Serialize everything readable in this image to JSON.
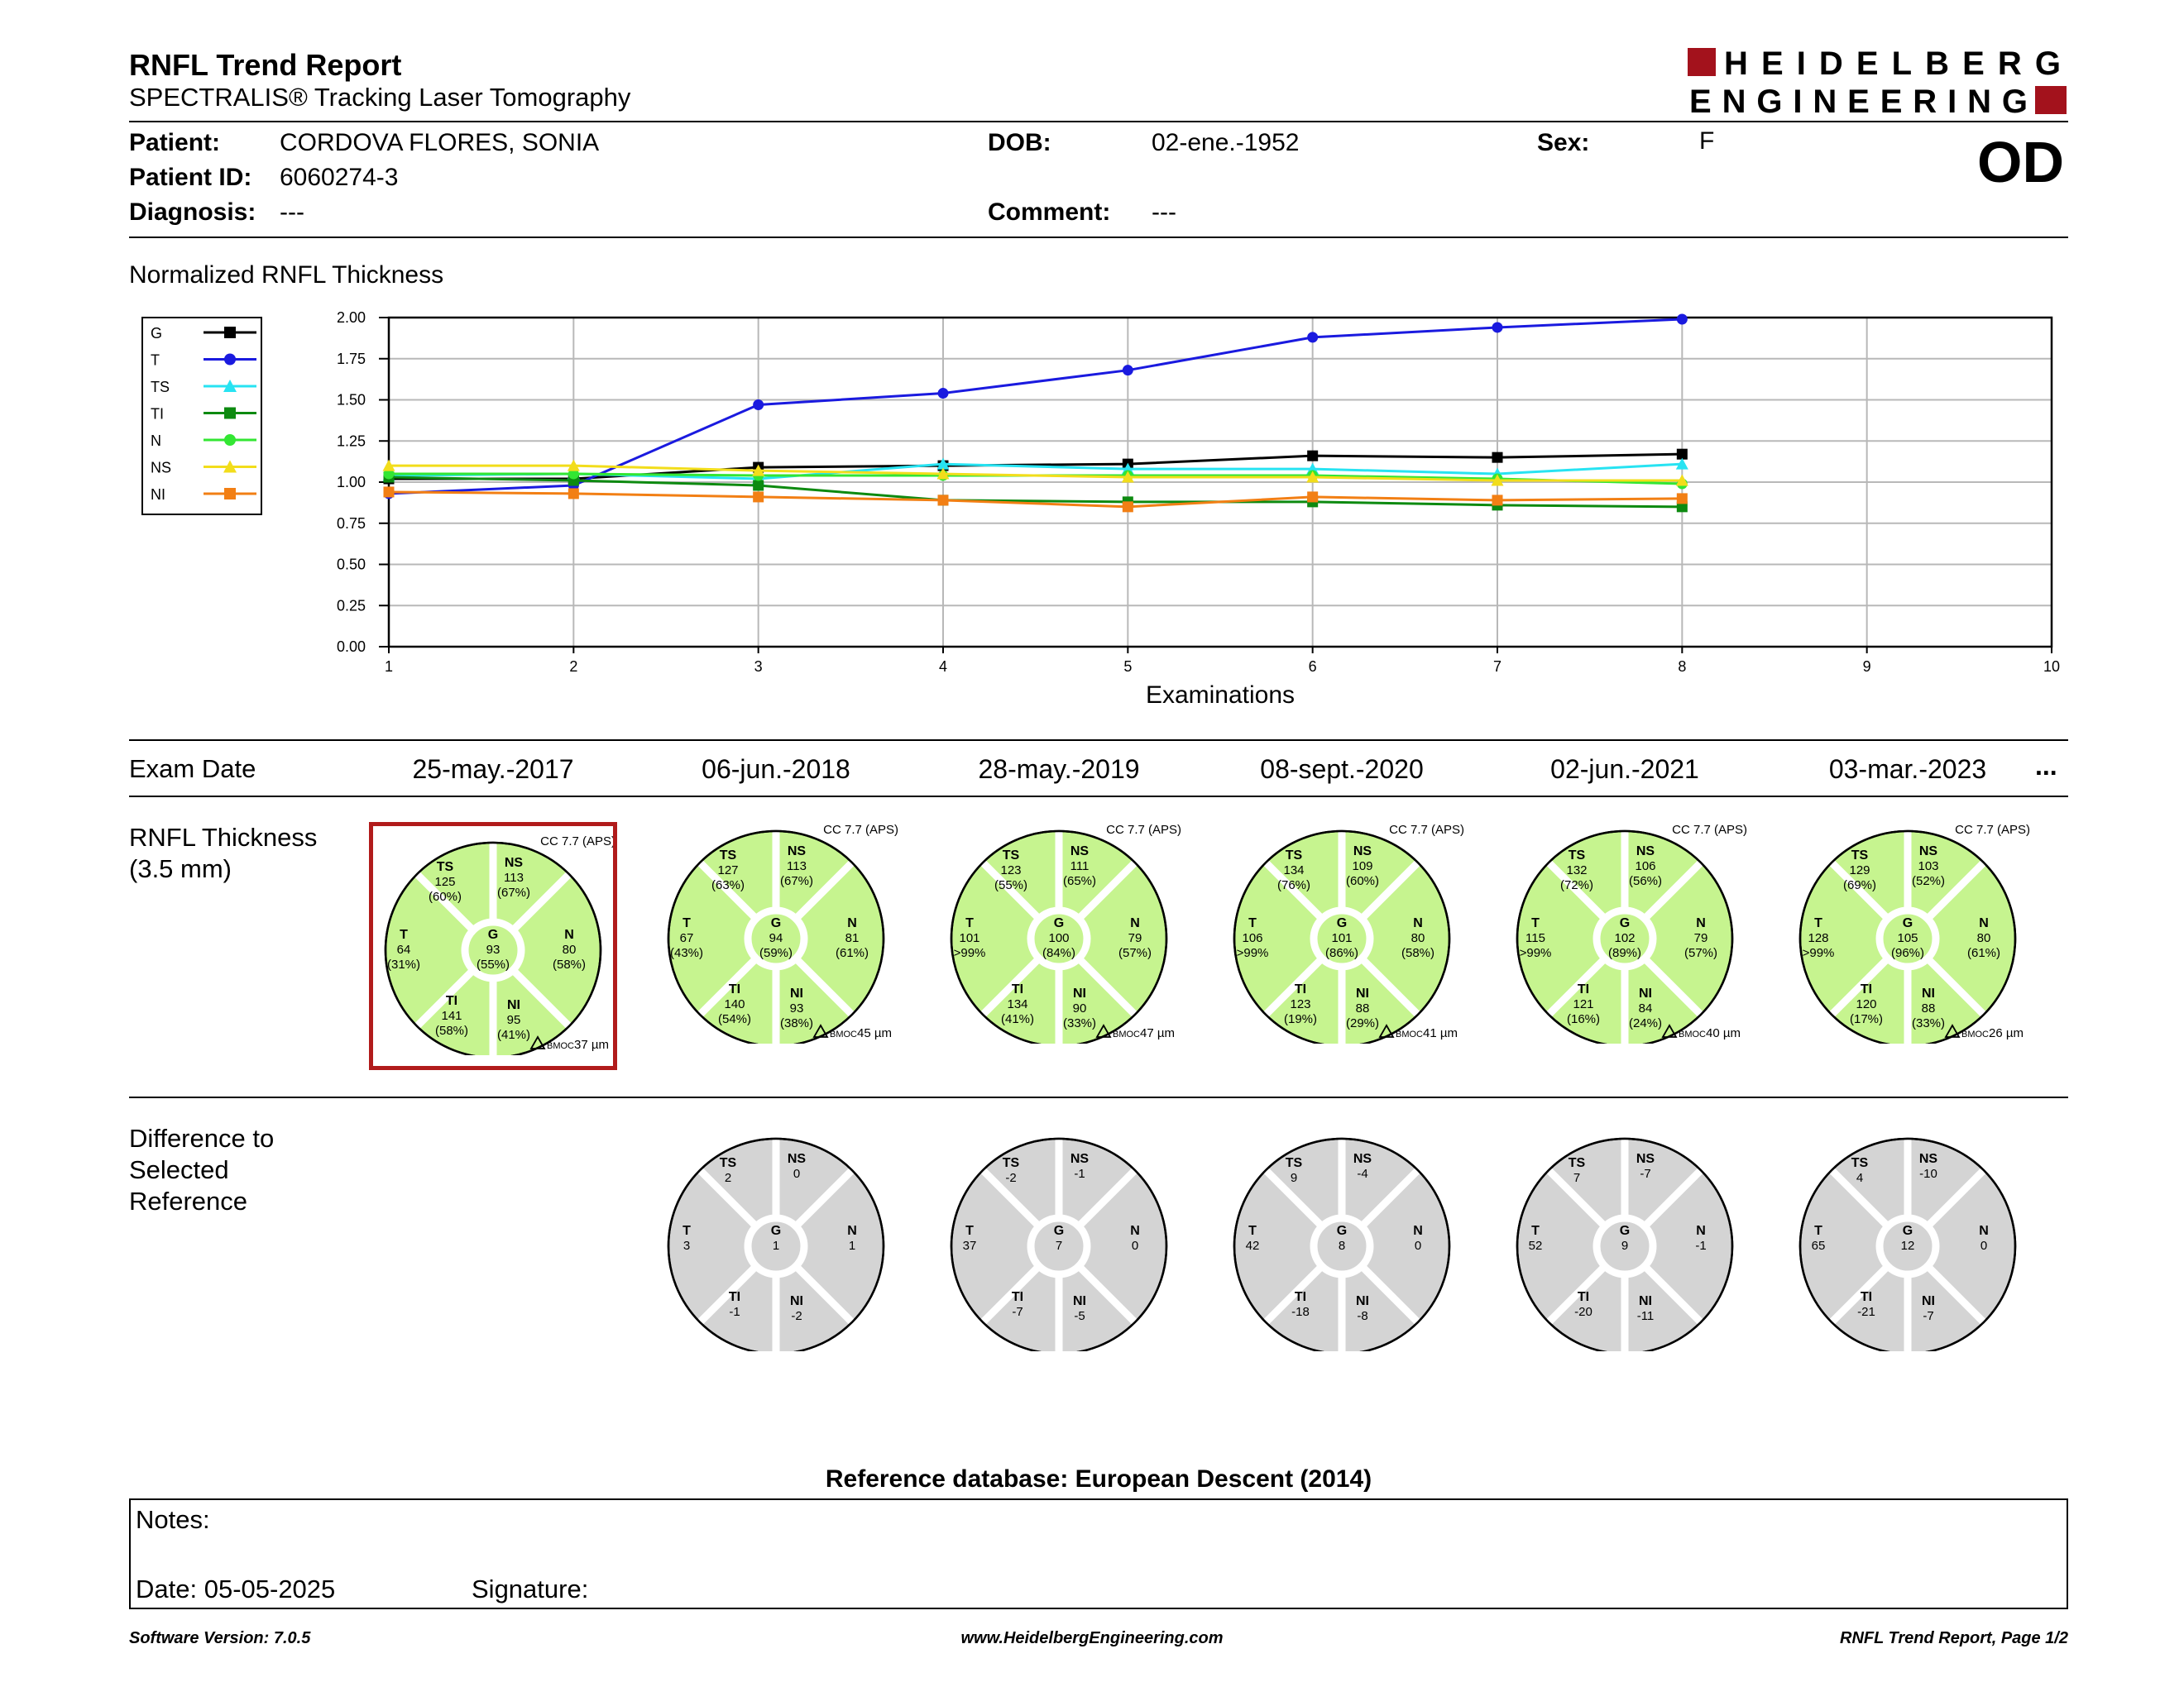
{
  "header": {
    "title": "RNFL Trend Report",
    "subtitle": "SPECTRALIS® Tracking Laser Tomography",
    "logo_line1": "HEIDELBERG",
    "logo_line2": "ENGINEERING",
    "eye": "OD",
    "brand_color": "#a3121c"
  },
  "patient": {
    "patient_label": "Patient:",
    "patient_value": "CORDOVA FLORES, SONIA",
    "dob_label": "DOB:",
    "dob_value": "02-ene.-1952",
    "sex_label": "Sex:",
    "sex_value": "F",
    "id_label": "Patient ID:",
    "id_value": "6060274-3",
    "diagnosis_label": "Diagnosis:",
    "diagnosis_value": "---",
    "comment_label": "Comment:",
    "comment_value": "---"
  },
  "chart_title": "Normalized RNFL Thickness",
  "chart_data": {
    "type": "line",
    "title": "Normalized RNFL Thickness",
    "xlabel": "Examinations",
    "ylabel": "",
    "xlim": [
      1,
      10
    ],
    "ylim": [
      0,
      2
    ],
    "x_ticks": [
      "1",
      "2",
      "3",
      "4",
      "5",
      "6",
      "7",
      "8",
      "9",
      "10"
    ],
    "y_ticks": [
      "0.00",
      "0.25",
      "0.50",
      "0.75",
      "1.00",
      "1.25",
      "1.50",
      "1.75",
      "2.00"
    ],
    "grid": true,
    "legend_position": "left",
    "x": [
      1,
      2,
      3,
      4,
      5,
      6,
      7,
      8
    ],
    "series": [
      {
        "name": "G",
        "color": "#000000",
        "marker": "square",
        "values": [
          1.02,
          1.02,
          1.09,
          1.1,
          1.11,
          1.16,
          1.15,
          1.17
        ]
      },
      {
        "name": "T",
        "color": "#1a1adf",
        "marker": "circle",
        "values": [
          0.93,
          0.98,
          1.47,
          1.54,
          1.68,
          1.88,
          1.94,
          1.99
        ]
      },
      {
        "name": "TS",
        "color": "#27e3f2",
        "marker": "triangle",
        "values": [
          1.04,
          1.05,
          1.02,
          1.11,
          1.08,
          1.08,
          1.05,
          1.11
        ]
      },
      {
        "name": "TI",
        "color": "#0d8a10",
        "marker": "square",
        "values": [
          1.03,
          1.01,
          0.98,
          0.89,
          0.88,
          0.88,
          0.86,
          0.85
        ]
      },
      {
        "name": "N",
        "color": "#33e633",
        "marker": "circle",
        "values": [
          1.05,
          1.05,
          1.04,
          1.04,
          1.04,
          1.04,
          1.02,
          0.99
        ]
      },
      {
        "name": "NS",
        "color": "#f2dd1b",
        "marker": "triangle",
        "values": [
          1.1,
          1.1,
          1.07,
          1.05,
          1.03,
          1.03,
          1.01,
          1.01
        ]
      },
      {
        "name": "NI",
        "color": "#f27f14",
        "marker": "square",
        "values": [
          0.94,
          0.93,
          0.91,
          0.89,
          0.85,
          0.91,
          0.89,
          0.9
        ]
      }
    ]
  },
  "exam_date_label": "Exam Date",
  "exam_dates": [
    "25-may.-2017",
    "06-jun.-2018",
    "28-may.-2019",
    "08-sept.-2020",
    "02-jun.-2021",
    "03-mar.-2023"
  ],
  "more_exams": "...",
  "rnfl_label_line1": "RNFL Thickness",
  "rnfl_label_line2": "(3.5 mm)",
  "diff_label_line1": "Difference to",
  "diff_label_line2": "Selected",
  "diff_label_line3": "Reference",
  "bmo_label": "BMOC",
  "colors": {
    "normal_fill": "#c6f48f",
    "diff_fill": "#d4d4d4",
    "selected_border": "#b11b1b"
  },
  "thickness_exams": [
    {
      "cc": "CC 7.7 (APS)",
      "bmoc": "37 µm",
      "TS": [
        "TS",
        "125",
        "(60%)"
      ],
      "NS": [
        "NS",
        "113",
        "(67%)"
      ],
      "T": [
        "T",
        "64",
        "(31%)"
      ],
      "G": [
        "G",
        "93",
        "(55%)"
      ],
      "N": [
        "N",
        "80",
        "(58%)"
      ],
      "TI": [
        "TI",
        "141",
        "(58%)"
      ],
      "NI": [
        "NI",
        "95",
        "(41%)"
      ]
    },
    {
      "cc": "CC 7.7 (APS)",
      "bmoc": "45 µm",
      "TS": [
        "TS",
        "127",
        "(63%)"
      ],
      "NS": [
        "NS",
        "113",
        "(67%)"
      ],
      "T": [
        "T",
        "67",
        "(43%)"
      ],
      "G": [
        "G",
        "94",
        "(59%)"
      ],
      "N": [
        "N",
        "81",
        "(61%)"
      ],
      "TI": [
        "TI",
        "140",
        "(54%)"
      ],
      "NI": [
        "NI",
        "93",
        "(38%)"
      ]
    },
    {
      "cc": "CC 7.7 (APS)",
      "bmoc": "47 µm",
      "TS": [
        "TS",
        "123",
        "(55%)"
      ],
      "NS": [
        "NS",
        "111",
        "(65%)"
      ],
      "T": [
        "T",
        "101",
        ">99%"
      ],
      "G": [
        "G",
        "100",
        "(84%)"
      ],
      "N": [
        "N",
        "79",
        "(57%)"
      ],
      "TI": [
        "TI",
        "134",
        "(41%)"
      ],
      "NI": [
        "NI",
        "90",
        "(33%)"
      ]
    },
    {
      "cc": "CC 7.7 (APS)",
      "bmoc": "41 µm",
      "TS": [
        "TS",
        "134",
        "(76%)"
      ],
      "NS": [
        "NS",
        "109",
        "(60%)"
      ],
      "T": [
        "T",
        "106",
        ">99%"
      ],
      "G": [
        "G",
        "101",
        "(86%)"
      ],
      "N": [
        "N",
        "80",
        "(58%)"
      ],
      "TI": [
        "TI",
        "123",
        "(19%)"
      ],
      "NI": [
        "NI",
        "88",
        "(29%)"
      ]
    },
    {
      "cc": "CC 7.7 (APS)",
      "bmoc": "40 µm",
      "TS": [
        "TS",
        "132",
        "(72%)"
      ],
      "NS": [
        "NS",
        "106",
        "(56%)"
      ],
      "T": [
        "T",
        "115",
        ">99%"
      ],
      "G": [
        "G",
        "102",
        "(89%)"
      ],
      "N": [
        "N",
        "79",
        "(57%)"
      ],
      "TI": [
        "TI",
        "121",
        "(16%)"
      ],
      "NI": [
        "NI",
        "84",
        "(24%)"
      ]
    },
    {
      "cc": "CC 7.7 (APS)",
      "bmoc": "26 µm",
      "TS": [
        "TS",
        "129",
        "(69%)"
      ],
      "NS": [
        "NS",
        "103",
        "(52%)"
      ],
      "T": [
        "T",
        "128",
        ">99%"
      ],
      "G": [
        "G",
        "105",
        "(96%)"
      ],
      "N": [
        "N",
        "80",
        "(61%)"
      ],
      "TI": [
        "TI",
        "120",
        "(17%)"
      ],
      "NI": [
        "NI",
        "88",
        "(33%)"
      ]
    }
  ],
  "difference_exams": [
    {
      "TS": [
        "TS",
        "2"
      ],
      "NS": [
        "NS",
        "0"
      ],
      "T": [
        "T",
        "3"
      ],
      "G": [
        "G",
        "1"
      ],
      "N": [
        "N",
        "1"
      ],
      "TI": [
        "TI",
        "-1"
      ],
      "NI": [
        "NI",
        "-2"
      ]
    },
    {
      "TS": [
        "TS",
        "-2"
      ],
      "NS": [
        "NS",
        "-1"
      ],
      "T": [
        "T",
        "37"
      ],
      "G": [
        "G",
        "7"
      ],
      "N": [
        "N",
        "0"
      ],
      "TI": [
        "TI",
        "-7"
      ],
      "NI": [
        "NI",
        "-5"
      ]
    },
    {
      "TS": [
        "TS",
        "9"
      ],
      "NS": [
        "NS",
        "-4"
      ],
      "T": [
        "T",
        "42"
      ],
      "G": [
        "G",
        "8"
      ],
      "N": [
        "N",
        "0"
      ],
      "TI": [
        "TI",
        "-18"
      ],
      "NI": [
        "NI",
        "-8"
      ]
    },
    {
      "TS": [
        "TS",
        "7"
      ],
      "NS": [
        "NS",
        "-7"
      ],
      "T": [
        "T",
        "52"
      ],
      "G": [
        "G",
        "9"
      ],
      "N": [
        "N",
        "-1"
      ],
      "TI": [
        "TI",
        "-20"
      ],
      "NI": [
        "NI",
        "-11"
      ]
    },
    {
      "TS": [
        "TS",
        "4"
      ],
      "NS": [
        "NS",
        "-10"
      ],
      "T": [
        "T",
        "65"
      ],
      "G": [
        "G",
        "12"
      ],
      "N": [
        "N",
        "0"
      ],
      "TI": [
        "TI",
        "-21"
      ],
      "NI": [
        "NI",
        "-7"
      ]
    }
  ],
  "reference_db": "Reference database: European Descent (2014)",
  "notes": {
    "notes_label": "Notes:",
    "date_label": "Date: 05-05-2025",
    "signature_label": "Signature:"
  },
  "footer": {
    "left": "Software Version: 7.0.5",
    "center": "www.HeidelbergEngineering.com",
    "right": "RNFL Trend Report, Page 1/2"
  }
}
